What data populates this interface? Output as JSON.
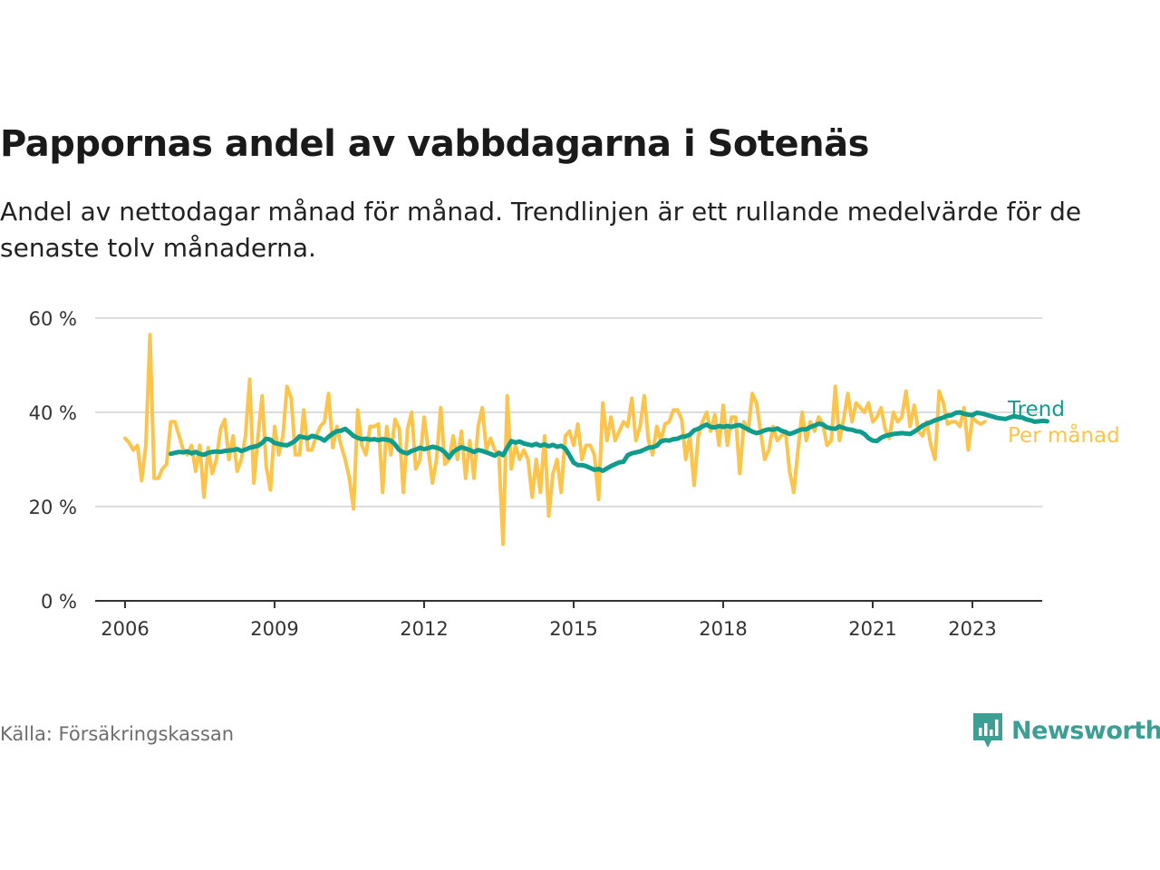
{
  "title": "Pappornas andel av vabbdagarna i Sotenäs",
  "subtitle": "Andel av nettodagar månad för månad. Trendlinjen är ett rullande medelvärde för de senaste tolv månaderna.",
  "source": "Källa: Försäkringskassan",
  "brand": "Newsworthy",
  "colors": {
    "trend": "#109c8c",
    "monthly": "#fcc44a",
    "grid": "#dddddd",
    "axis": "#333333",
    "brand": "#3d9e93"
  },
  "chart_data": {
    "type": "line",
    "ylim": [
      0,
      60
    ],
    "y_ticks": [
      0,
      20,
      40,
      60
    ],
    "y_tick_labels": [
      "0 %",
      "20 %",
      "40 %",
      "60 %"
    ],
    "x_ticks": [
      2006,
      2009,
      2012,
      2015,
      2018,
      2021,
      2023
    ],
    "x_tick_labels": [
      "2006",
      "2009",
      "2012",
      "2015",
      "2018",
      "2021",
      "2023"
    ],
    "grid": true,
    "legend": "end-of-line labels, right",
    "series": [
      {
        "name": "Per månad",
        "color": "#fcc44a",
        "x_start": "2006-01",
        "step": "month",
        "values": [
          34.5,
          33.5,
          32,
          33,
          25.5,
          33,
          56.5,
          26,
          26,
          28,
          29,
          38,
          38,
          35,
          32,
          31,
          33,
          27.5,
          33,
          22,
          32.5,
          27,
          30,
          36.5,
          38.5,
          30,
          35,
          27.5,
          30,
          35,
          47,
          25,
          35,
          43.5,
          28.5,
          23.5,
          37,
          31,
          35,
          45.5,
          43,
          31,
          31,
          40.5,
          32,
          32,
          35,
          37,
          38,
          44,
          32.5,
          37,
          33,
          30,
          26,
          19.5,
          40.5,
          33,
          31,
          37,
          37,
          37.5,
          23,
          37,
          31,
          38.5,
          36.5,
          23,
          36.5,
          40,
          28,
          30,
          39,
          32,
          25,
          30,
          41,
          29,
          30,
          35,
          30,
          36,
          26,
          34,
          26,
          37,
          41,
          32,
          34.5,
          32,
          31,
          12,
          43.5,
          28,
          33,
          30,
          32,
          30,
          22,
          30,
          23,
          35,
          18,
          27,
          30,
          23,
          35,
          36,
          33,
          37.5,
          30,
          33,
          33,
          31,
          21.5,
          42,
          34,
          39,
          34,
          36,
          38,
          37,
          43,
          34,
          37,
          43.5,
          34,
          31,
          37,
          34,
          37.5,
          38,
          40.5,
          40.5,
          38.5,
          30,
          35,
          24.5,
          35,
          38,
          40,
          36,
          39.5,
          33,
          41.5,
          33,
          39,
          39,
          27,
          38,
          36,
          44,
          42,
          36,
          30,
          32,
          37,
          34,
          35,
          36,
          27.5,
          23,
          32,
          40,
          34,
          38,
          36,
          39,
          37.5,
          33,
          34,
          45.5,
          34,
          38.5,
          44,
          38,
          42,
          41,
          40,
          42,
          38,
          39,
          41,
          36.5,
          34.5,
          40,
          38,
          39,
          44.5,
          37,
          41.5,
          36,
          35,
          38,
          33,
          30,
          44.5,
          42,
          37.5,
          38,
          38,
          37,
          41,
          32,
          39,
          38,
          37.5,
          38
        ]
      },
      {
        "name": "Trend",
        "color": "#109c8c",
        "x_start": "2006-12",
        "step": "month",
        "values": [
          31.2,
          31.4,
          31.6,
          31.5,
          31.7,
          31.3,
          31.6,
          31.2,
          31.0,
          31.4,
          31.6,
          31.7,
          31.6,
          31.8,
          31.9,
          32.0,
          32.2,
          31.8,
          32.1,
          32.5,
          32.7,
          32.9,
          33.5,
          34.4,
          34.2,
          33.5,
          33.3,
          33.1,
          33.0,
          33.4,
          34.0,
          34.9,
          34.7,
          34.5,
          35.0,
          34.8,
          34.5,
          34.0,
          34.8,
          35.5,
          36.0,
          36.1,
          36.5,
          35.8,
          35.0,
          34.6,
          34.3,
          34.4,
          34.2,
          34.3,
          34.1,
          34.3,
          34.2,
          34.0,
          33.2,
          32.0,
          31.5,
          31.3,
          31.8,
          32.1,
          32.5,
          32.2,
          32.4,
          32.7,
          32.5,
          32.2,
          31.5,
          30.4,
          31.6,
          32.2,
          32.6,
          32.3,
          32.0,
          31.6,
          32.0,
          31.8,
          31.5,
          31.2,
          30.8,
          31.4,
          30.9,
          32.5,
          33.9,
          33.6,
          33.8,
          33.4,
          33.2,
          33.0,
          33.3,
          32.9,
          33.2,
          32.8,
          33.1,
          32.7,
          32.9,
          32.3,
          30.9,
          29.3,
          28.8,
          28.8,
          28.6,
          28.2,
          27.8,
          28.0,
          27.6,
          28.1,
          28.6,
          29.0,
          29.4,
          29.5,
          30.9,
          31.3,
          31.5,
          31.7,
          32.1,
          32.5,
          32.6,
          32.9,
          33.8,
          34.1,
          34.0,
          34.3,
          34.4,
          34.8,
          34.9,
          35.3,
          36.2,
          36.5,
          37.0,
          37.4,
          36.9,
          36.8,
          37.1,
          36.9,
          37.1,
          36.9,
          37.2,
          37.3,
          36.8,
          36.4,
          35.9,
          35.6,
          35.8,
          36.2,
          36.4,
          36.3,
          36.6,
          36.1,
          35.8,
          35.4,
          35.7,
          36.1,
          36.4,
          36.4,
          36.9,
          37.2,
          37.6,
          37.4,
          36.8,
          36.6,
          36.5,
          37.0,
          36.7,
          36.4,
          36.3,
          36.0,
          35.9,
          35.4,
          34.5,
          34.0,
          33.9,
          34.6,
          35.0,
          35.2,
          35.4,
          35.5,
          35.6,
          35.5,
          35.4,
          35.9,
          36.5,
          37.2,
          37.6,
          37.9,
          38.3,
          38.6,
          38.9,
          39.3,
          39.4,
          39.9,
          40.0,
          39.7,
          39.5,
          39.4,
          39.9,
          39.8,
          39.6,
          39.3,
          39.1,
          38.8,
          38.7,
          38.6,
          38.9,
          39.2,
          39.0,
          38.9,
          38.5,
          38.3,
          38.0,
          38.1,
          38.2,
          38.1
        ]
      }
    ]
  }
}
